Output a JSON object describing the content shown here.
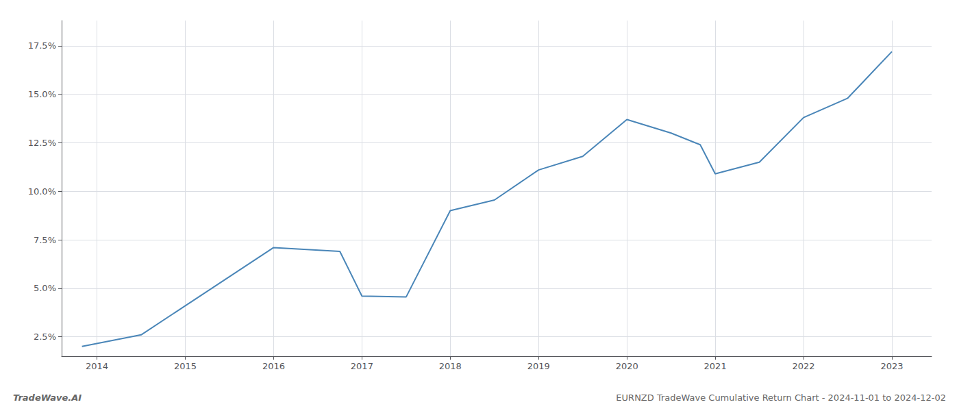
{
  "chart_data": {
    "type": "line",
    "title": "EURNZD TradeWave Cumulative Return Chart - 2024-11-01 to 2024-12-02",
    "annotations": [
      "TradeWave.AI"
    ],
    "x": [
      2013.83,
      2014.5,
      2015.0,
      2016.0,
      2016.75,
      2017.0,
      2017.5,
      2018.0,
      2018.5,
      2019.0,
      2019.5,
      2020.0,
      2020.5,
      2020.83,
      2021.0,
      2021.5,
      2022.0,
      2022.5,
      2023.0
    ],
    "values": [
      2.0,
      2.6,
      4.1,
      7.1,
      6.9,
      4.6,
      4.55,
      9.0,
      9.55,
      11.1,
      11.8,
      13.7,
      13.0,
      12.4,
      10.9,
      11.5,
      13.8,
      14.8,
      17.2
    ],
    "color": "#4a86b8",
    "xlim": [
      2013.6,
      2023.45
    ],
    "xticks": [
      2014,
      2015,
      2016,
      2017,
      2018,
      2019,
      2020,
      2021,
      2022,
      2023
    ],
    "ylim": [
      1.5,
      18.8
    ],
    "yticks": [
      {
        "value": 2.5,
        "label": "2.5%"
      },
      {
        "value": 5.0,
        "label": "5.0%"
      },
      {
        "value": 7.5,
        "label": "7.5%"
      },
      {
        "value": 10.0,
        "label": "10.0%"
      },
      {
        "value": 12.5,
        "label": "12.5%"
      },
      {
        "value": 15.0,
        "label": "15.0%"
      },
      {
        "value": 17.5,
        "label": "17.5%"
      }
    ],
    "grid": true
  }
}
